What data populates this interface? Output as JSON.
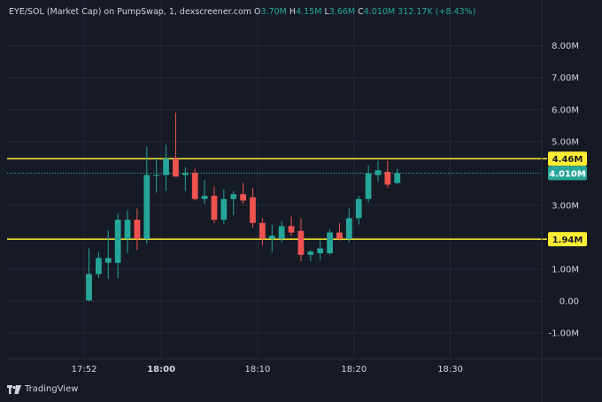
{
  "legend": {
    "symbol": "EYE/SOL (Market Cap) on PumpSwap, 1, dexscreener.com",
    "open_label": "O",
    "open": "3.70M",
    "high_label": "H",
    "high": "4.15M",
    "low_label": "L",
    "low": "3.66M",
    "close_label": "C",
    "close": "4.010M",
    "change": "312.17K (+8.43%)"
  },
  "branding": {
    "name": "TradingView"
  },
  "colors": {
    "background": "#161a25",
    "grid": "#252a36",
    "up": "#26a69a",
    "down": "#ef5350",
    "level_line": "#ffee33",
    "text": "#d1d4dc"
  },
  "chart_data": {
    "type": "candlestick",
    "title": "EYE/SOL (Market Cap) on PumpSwap, 1, dexscreener.com",
    "unit": "M",
    "y_ticks": [
      "-1.00M",
      "0.00",
      "1.00M",
      "2.00M",
      "3.00M",
      "4.00M",
      "5.00M",
      "6.00M",
      "7.00M",
      "8.00M"
    ],
    "y_tick_values": [
      -1,
      0,
      1,
      2,
      3,
      4,
      5,
      6,
      7,
      8
    ],
    "x_ticks": [
      "17:52",
      "18:00",
      "18:10",
      "18:20",
      "18:30"
    ],
    "x_tick_minutes": [
      -8,
      0,
      10,
      20,
      30
    ],
    "bold_x_tick": "18:00",
    "ylim": [
      -1.8,
      8.6
    ],
    "xlim_minutes": [
      -16,
      39.5
    ],
    "grid": true,
    "horizontal_levels": [
      {
        "label": "4.46M",
        "value": 4.46
      },
      {
        "label": "1.94M",
        "value": 1.94
      }
    ],
    "last_price": {
      "label": "4.010M",
      "value": 4.01
    },
    "candles": [
      {
        "t": -7.5,
        "open": 0.02,
        "high": 1.65,
        "low": 0.0,
        "close": 0.85
      },
      {
        "t": -6.5,
        "open": 0.85,
        "high": 1.55,
        "low": 0.72,
        "close": 1.35
      },
      {
        "t": -5.5,
        "open": 1.2,
        "high": 2.22,
        "low": 0.7,
        "close": 1.35
      },
      {
        "t": -4.5,
        "open": 1.2,
        "high": 2.75,
        "low": 0.72,
        "close": 2.55
      },
      {
        "t": -3.5,
        "open": 1.95,
        "high": 2.85,
        "low": 1.5,
        "close": 2.55
      },
      {
        "t": -2.5,
        "open": 2.55,
        "high": 2.9,
        "low": 1.6,
        "close": 1.95
      },
      {
        "t": -1.5,
        "open": 1.95,
        "high": 4.85,
        "low": 1.8,
        "close": 3.95
      },
      {
        "t": -0.5,
        "open": 3.95,
        "high": 4.5,
        "low": 3.4,
        "close": 3.95
      },
      {
        "t": 0.5,
        "open": 3.95,
        "high": 4.9,
        "low": 3.45,
        "close": 4.46
      },
      {
        "t": 1.5,
        "open": 4.46,
        "high": 5.9,
        "low": 3.95,
        "close": 3.9
      },
      {
        "t": 2.5,
        "open": 3.95,
        "high": 4.2,
        "low": 3.45,
        "close": 4.02
      },
      {
        "t": 3.5,
        "open": 4.02,
        "high": 4.15,
        "low": 3.15,
        "close": 3.2
      },
      {
        "t": 4.5,
        "open": 3.2,
        "high": 3.8,
        "low": 3.05,
        "close": 3.3
      },
      {
        "t": 5.5,
        "open": 3.3,
        "high": 3.6,
        "low": 2.45,
        "close": 2.55
      },
      {
        "t": 6.5,
        "open": 2.55,
        "high": 3.5,
        "low": 2.4,
        "close": 3.2
      },
      {
        "t": 7.5,
        "open": 3.2,
        "high": 3.45,
        "low": 2.7,
        "close": 3.35
      },
      {
        "t": 8.5,
        "open": 3.35,
        "high": 3.7,
        "low": 3.05,
        "close": 3.15
      },
      {
        "t": 9.5,
        "open": 3.25,
        "high": 3.55,
        "low": 2.3,
        "close": 2.45
      },
      {
        "t": 10.5,
        "open": 2.45,
        "high": 2.6,
        "low": 1.75,
        "close": 1.95
      },
      {
        "t": 11.5,
        "open": 1.95,
        "high": 2.4,
        "low": 1.55,
        "close": 2.05
      },
      {
        "t": 12.5,
        "open": 1.95,
        "high": 2.5,
        "low": 1.85,
        "close": 2.35
      },
      {
        "t": 13.5,
        "open": 2.35,
        "high": 2.65,
        "low": 2.05,
        "close": 2.15
      },
      {
        "t": 14.5,
        "open": 2.2,
        "high": 2.6,
        "low": 1.25,
        "close": 1.45
      },
      {
        "t": 15.5,
        "open": 1.45,
        "high": 1.6,
        "low": 1.25,
        "close": 1.55
      },
      {
        "t": 16.5,
        "open": 1.5,
        "high": 1.9,
        "low": 1.3,
        "close": 1.65
      },
      {
        "t": 17.5,
        "open": 1.5,
        "high": 2.25,
        "low": 1.45,
        "close": 2.15
      },
      {
        "t": 18.5,
        "open": 2.15,
        "high": 2.45,
        "low": 1.9,
        "close": 1.95
      },
      {
        "t": 19.5,
        "open": 1.95,
        "high": 2.9,
        "low": 1.85,
        "close": 2.6
      },
      {
        "t": 20.5,
        "open": 2.6,
        "high": 3.3,
        "low": 2.4,
        "close": 3.2
      },
      {
        "t": 21.5,
        "open": 3.2,
        "high": 4.25,
        "low": 3.1,
        "close": 4.0
      },
      {
        "t": 22.5,
        "open": 3.95,
        "high": 4.4,
        "low": 3.75,
        "close": 4.1
      },
      {
        "t": 23.5,
        "open": 4.05,
        "high": 4.4,
        "low": 3.55,
        "close": 3.65
      },
      {
        "t": 24.5,
        "open": 3.7,
        "high": 4.15,
        "low": 3.66,
        "close": 4.01
      }
    ]
  }
}
